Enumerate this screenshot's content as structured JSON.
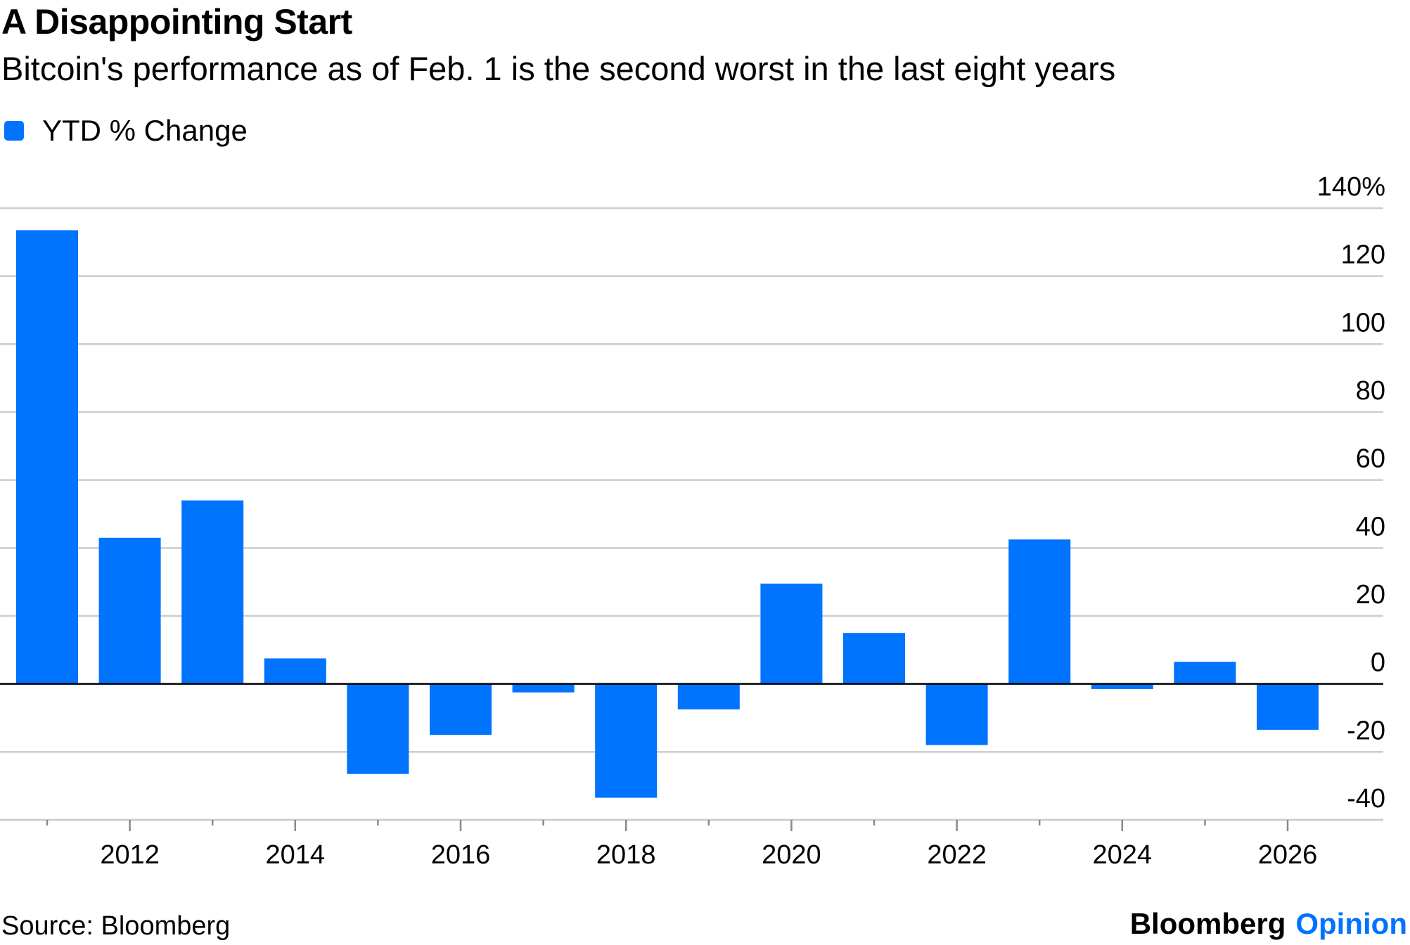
{
  "chart_data": {
    "type": "bar",
    "title": "A Disappointing Start",
    "subtitle": "Bitcoin's performance as of Feb. 1 is the second worst in the last eight years",
    "legend": [
      {
        "label": "YTD % Change",
        "color": "#0073ff"
      }
    ],
    "series": [
      {
        "name": "YTD % Change",
        "years": [
          2011,
          2012,
          2013,
          2014,
          2015,
          2016,
          2017,
          2018,
          2019,
          2020,
          2021,
          2022,
          2023,
          2024,
          2025,
          2026
        ],
        "values": [
          133.5,
          43,
          54,
          7.5,
          -26.5,
          -15,
          -2.5,
          -33.5,
          -7.5,
          29.5,
          15,
          -18,
          42.5,
          -1.5,
          6.5,
          -13.5
        ]
      }
    ],
    "x_tick_labels": [
      "2012",
      "2014",
      "2016",
      "2018",
      "2020",
      "2022",
      "2024",
      "2026"
    ],
    "y_ticks": [
      140,
      120,
      100,
      80,
      60,
      40,
      20,
      0,
      -20,
      -40
    ],
    "y_tick_labels": [
      "140%",
      "120",
      "100",
      "80",
      "60",
      "40",
      "20",
      "0",
      "-20",
      "-40"
    ],
    "ylim": [
      -40,
      140
    ],
    "xlabel": "",
    "ylabel": "",
    "grid": true,
    "bar_color": "#0073ff"
  },
  "footer": {
    "source": "Source: Bloomberg",
    "brand_name": "Bloomberg",
    "brand_accent": "Opinion",
    "brand_accent_color": "#0073ff"
  }
}
